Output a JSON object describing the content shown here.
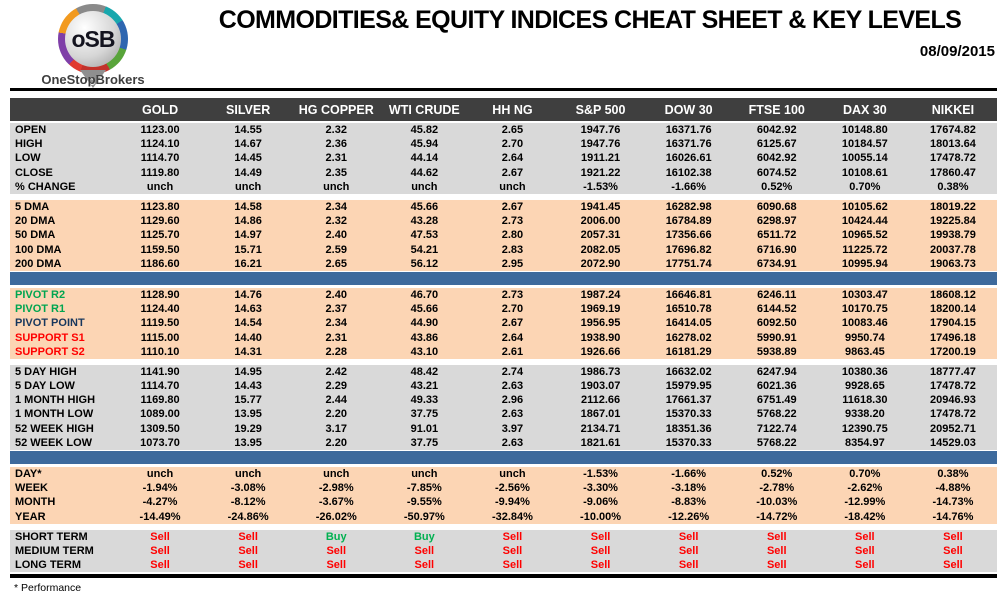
{
  "header": {
    "logo": {
      "initials": "oSB",
      "brand": "OneStopBrokers"
    },
    "title": "COMMODITIES& EQUITY INDICES CHEAT SHEET & KEY LEVELS",
    "date": "08/09/2015"
  },
  "colors": {
    "head_bg": "#3f3f3f",
    "section_gray": "#d9d9d9",
    "section_peach": "#fcd5b4",
    "blue_bar": "#3e6a9c",
    "sell_red": "#ff0000",
    "buy_green": "#00b050",
    "pivot_green": "#00a550",
    "pivot_navy": "#17375d"
  },
  "table": {
    "columns": [
      "GOLD",
      "SILVER",
      "HG COPPER",
      "WTI CRUDE",
      "HH NG",
      "S&P 500",
      "DOW 30",
      "FTSE 100",
      "DAX 30",
      "NIKKEI"
    ],
    "sections": [
      {
        "name": "ohlc",
        "bg": "gray",
        "after": "gap",
        "rows": [
          {
            "label": "OPEN",
            "values": [
              "1123.00",
              "14.55",
              "2.32",
              "45.82",
              "2.65",
              "1947.76",
              "16371.76",
              "6042.92",
              "10148.80",
              "17674.82"
            ]
          },
          {
            "label": "HIGH",
            "values": [
              "1124.10",
              "14.67",
              "2.36",
              "45.94",
              "2.70",
              "1947.76",
              "16371.76",
              "6125.67",
              "10184.57",
              "18013.64"
            ]
          },
          {
            "label": "LOW",
            "values": [
              "1114.70",
              "14.45",
              "2.31",
              "44.14",
              "2.64",
              "1911.21",
              "16026.61",
              "6042.92",
              "10055.14",
              "17478.72"
            ]
          },
          {
            "label": "CLOSE",
            "values": [
              "1119.80",
              "14.49",
              "2.35",
              "44.62",
              "2.67",
              "1921.22",
              "16102.38",
              "6074.52",
              "10108.61",
              "17860.47"
            ]
          },
          {
            "label": "% CHANGE",
            "values": [
              "unch",
              "unch",
              "unch",
              "unch",
              "unch",
              "-1.53%",
              "-1.66%",
              "0.52%",
              "0.70%",
              "0.38%"
            ]
          }
        ]
      },
      {
        "name": "moving-averages",
        "bg": "peach",
        "after": "bluebar",
        "rows": [
          {
            "label": "5 DMA",
            "values": [
              "1123.80",
              "14.58",
              "2.34",
              "45.66",
              "2.67",
              "1941.45",
              "16282.98",
              "6090.68",
              "10105.62",
              "18019.22"
            ]
          },
          {
            "label": "20 DMA",
            "values": [
              "1129.60",
              "14.86",
              "2.32",
              "43.28",
              "2.73",
              "2006.00",
              "16784.89",
              "6298.97",
              "10424.44",
              "19225.84"
            ]
          },
          {
            "label": "50 DMA",
            "values": [
              "1125.70",
              "14.97",
              "2.40",
              "47.53",
              "2.80",
              "2057.31",
              "17356.66",
              "6511.72",
              "10965.52",
              "19938.79"
            ]
          },
          {
            "label": "100 DMA",
            "values": [
              "1159.50",
              "15.71",
              "2.59",
              "54.21",
              "2.83",
              "2082.05",
              "17696.82",
              "6716.90",
              "11225.72",
              "20037.78"
            ]
          },
          {
            "label": "200 DMA",
            "values": [
              "1186.60",
              "16.21",
              "2.65",
              "56.12",
              "2.95",
              "2072.90",
              "17751.74",
              "6734.91",
              "10995.94",
              "19063.73"
            ]
          }
        ]
      },
      {
        "name": "pivots",
        "bg": "peach",
        "after": "gap",
        "rows": [
          {
            "label": "PIVOT R2",
            "label_color": "green",
            "values": [
              "1128.90",
              "14.76",
              "2.40",
              "46.70",
              "2.73",
              "1987.24",
              "16646.81",
              "6246.11",
              "10303.47",
              "18608.12"
            ]
          },
          {
            "label": "PIVOT R1",
            "label_color": "green",
            "values": [
              "1124.40",
              "14.63",
              "2.37",
              "45.66",
              "2.70",
              "1969.19",
              "16510.78",
              "6144.52",
              "10170.75",
              "18200.14"
            ]
          },
          {
            "label": "PIVOT POINT",
            "label_color": "navy",
            "values": [
              "1119.50",
              "14.54",
              "2.34",
              "44.90",
              "2.67",
              "1956.95",
              "16414.05",
              "6092.50",
              "10083.46",
              "17904.15"
            ]
          },
          {
            "label": "SUPPORT S1",
            "label_color": "red",
            "values": [
              "1115.00",
              "14.40",
              "2.31",
              "43.86",
              "2.64",
              "1938.90",
              "16278.02",
              "5990.91",
              "9950.74",
              "17496.18"
            ]
          },
          {
            "label": "SUPPORT S2",
            "label_color": "red",
            "values": [
              "1110.10",
              "14.31",
              "2.28",
              "43.10",
              "2.61",
              "1926.66",
              "16181.29",
              "5938.89",
              "9863.45",
              "17200.19"
            ]
          }
        ]
      },
      {
        "name": "ranges",
        "bg": "gray",
        "after": "bluebar",
        "rows": [
          {
            "label": "5 DAY HIGH",
            "values": [
              "1141.90",
              "14.95",
              "2.42",
              "48.42",
              "2.74",
              "1986.73",
              "16632.02",
              "6247.94",
              "10380.36",
              "18777.47"
            ]
          },
          {
            "label": "5 DAY LOW",
            "values": [
              "1114.70",
              "14.43",
              "2.29",
              "43.21",
              "2.63",
              "1903.07",
              "15979.95",
              "6021.36",
              "9928.65",
              "17478.72"
            ]
          },
          {
            "label": "1 MONTH HIGH",
            "values": [
              "1169.80",
              "15.77",
              "2.44",
              "49.33",
              "2.96",
              "2112.66",
              "17661.37",
              "6751.49",
              "11618.30",
              "20946.93"
            ]
          },
          {
            "label": "1 MONTH LOW",
            "values": [
              "1089.00",
              "13.95",
              "2.20",
              "37.75",
              "2.63",
              "1867.01",
              "15370.33",
              "5768.22",
              "9338.20",
              "17478.72"
            ]
          },
          {
            "label": "52 WEEK HIGH",
            "values": [
              "1309.50",
              "19.29",
              "3.17",
              "91.01",
              "3.97",
              "2134.71",
              "18351.36",
              "7122.74",
              "12390.75",
              "20952.71"
            ]
          },
          {
            "label": "52 WEEK LOW",
            "values": [
              "1073.70",
              "13.95",
              "2.20",
              "37.75",
              "2.63",
              "1821.61",
              "15370.33",
              "5768.22",
              "8354.97",
              "14529.03"
            ]
          }
        ]
      },
      {
        "name": "performance",
        "bg": "peach",
        "after": "gap",
        "rows": [
          {
            "label": "DAY*",
            "values": [
              "unch",
              "unch",
              "unch",
              "unch",
              "unch",
              "-1.53%",
              "-1.66%",
              "0.52%",
              "0.70%",
              "0.38%"
            ]
          },
          {
            "label": "WEEK",
            "values": [
              "-1.94%",
              "-3.08%",
              "-2.98%",
              "-7.85%",
              "-2.56%",
              "-3.30%",
              "-3.18%",
              "-2.78%",
              "-2.62%",
              "-4.88%"
            ]
          },
          {
            "label": "MONTH",
            "values": [
              "-4.27%",
              "-8.12%",
              "-3.67%",
              "-9.55%",
              "-9.94%",
              "-9.06%",
              "-8.83%",
              "-10.03%",
              "-12.99%",
              "-14.73%"
            ]
          },
          {
            "label": "YEAR",
            "values": [
              "-14.49%",
              "-24.86%",
              "-26.02%",
              "-50.97%",
              "-32.84%",
              "-10.00%",
              "-12.26%",
              "-14.72%",
              "-18.42%",
              "-14.76%"
            ]
          }
        ]
      },
      {
        "name": "signals",
        "bg": "gray",
        "after": "none",
        "rows": [
          {
            "label": "SHORT TERM",
            "values": [
              "Sell",
              "Sell",
              "Buy",
              "Buy",
              "Sell",
              "Sell",
              "Sell",
              "Sell",
              "Sell",
              "Sell"
            ]
          },
          {
            "label": "MEDIUM TERM",
            "values": [
              "Sell",
              "Sell",
              "Sell",
              "Sell",
              "Sell",
              "Sell",
              "Sell",
              "Sell",
              "Sell",
              "Sell"
            ]
          },
          {
            "label": "LONG TERM",
            "values": [
              "Sell",
              "Sell",
              "Sell",
              "Sell",
              "Sell",
              "Sell",
              "Sell",
              "Sell",
              "Sell",
              "Sell"
            ]
          }
        ]
      }
    ],
    "footnote": "* Performance"
  }
}
